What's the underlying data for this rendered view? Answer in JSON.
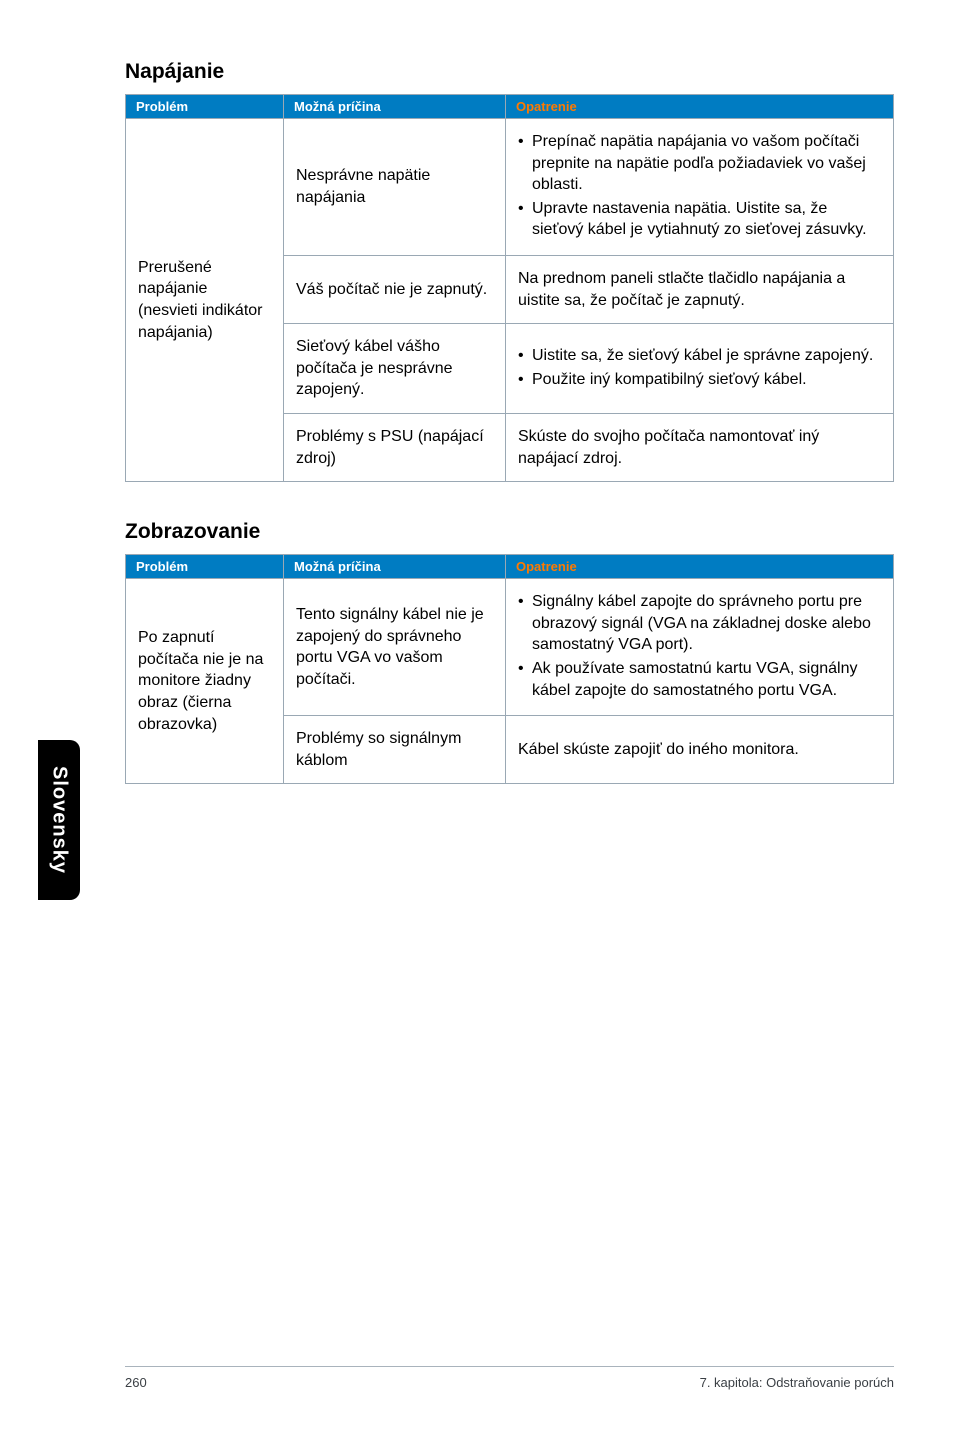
{
  "sideTab": "Slovensky",
  "footer": {
    "pageNumber": "260",
    "chapter": "7. kapitola: Odstraňovanie porúch"
  },
  "sections": [
    {
      "title": "Napájanie",
      "headers": [
        "Problém",
        "Možná príčina",
        "Opatrenie"
      ],
      "col1Rowspan": 4,
      "col1Text": "Prerušené napájanie (nesvieti indikátor napájania)",
      "rows": [
        {
          "col2": "Nesprávne napätie napájania",
          "col3_type": "list",
          "col3_items": [
            "Prepínač napätia napájania vo vašom počítači prepnite na napätie podľa požiadaviek vo vašej oblasti.",
            "Upravte nastavenia napätia. Uistite sa, že sieťový kábel je vytiahnutý zo sieťovej zásuvky."
          ]
        },
        {
          "col2": "Váš počítač nie je zapnutý.",
          "col3_type": "text",
          "col3_text": "Na prednom paneli stlačte tlačidlo napájania a uistite sa, že počítač je zapnutý."
        },
        {
          "col2": "Sieťový kábel vášho počítača je nesprávne zapojený.",
          "col3_type": "list",
          "col3_items": [
            "Uistite sa, že sieťový kábel je správne zapojený.",
            "Použite iný kompatibilný sieťový kábel."
          ]
        },
        {
          "col2": "Problémy s PSU (napájací zdroj)",
          "col3_type": "text",
          "col3_text": "Skúste do svojho počítača namontovať iný napájací zdroj."
        }
      ]
    },
    {
      "title": "Zobrazovanie",
      "headers": [
        "Problém",
        "Možná príčina",
        "Opatrenie"
      ],
      "col1Rowspan": 2,
      "col1Text": "Po zapnutí počítača nie je na monitore žiadny obraz (čierna obrazovka)",
      "rows": [
        {
          "col2": "Tento signálny kábel nie je zapojený do správneho portu VGA vo vašom počítači.",
          "col3_type": "list",
          "col3_items": [
            "Signálny kábel zapojte do správneho portu pre obrazový signál (VGA na základnej doske alebo samostatný VGA port).",
            "Ak používate samostatnú kartu VGA, signálny kábel zapojte do samostatného portu VGA."
          ]
        },
        {
          "col2": "Problémy so signálnym káblom",
          "col3_type": "text",
          "col3_text": "Kábel skúste zapojiť do iného monitora."
        }
      ]
    }
  ]
}
